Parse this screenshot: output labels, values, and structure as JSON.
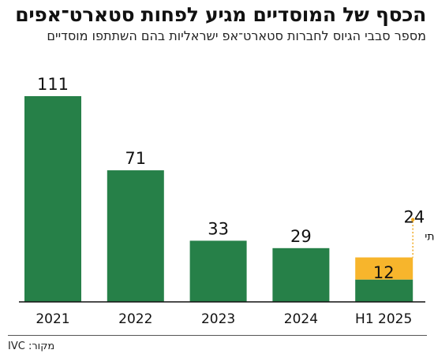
{
  "title": "הכסף של המוסדיים מגיע לפחות סטארט־אפים",
  "subtitle": "מספר סבבי הגיוס לחברות סטארט־אפ ישראליות בהם השתתפו מוסדיים",
  "source": "מקור: IVC",
  "colors": {
    "bar": "#268048",
    "projection": "#f7b52c",
    "projection_marker": "#f0a81e",
    "axis": "#111111"
  },
  "chart_data": {
    "type": "bar",
    "categories": [
      "2021",
      "2022",
      "2023",
      "2024",
      "H1 2025"
    ],
    "values": [
      111,
      71,
      33,
      29,
      12
    ],
    "projection": {
      "category": "H1 2025",
      "value": 24,
      "label": "קצב שנתי"
    },
    "title": "הכסף של המוסדיים מגיע לפחות סטארט־אפים",
    "ylim": [
      0,
      120
    ],
    "grid": false
  }
}
